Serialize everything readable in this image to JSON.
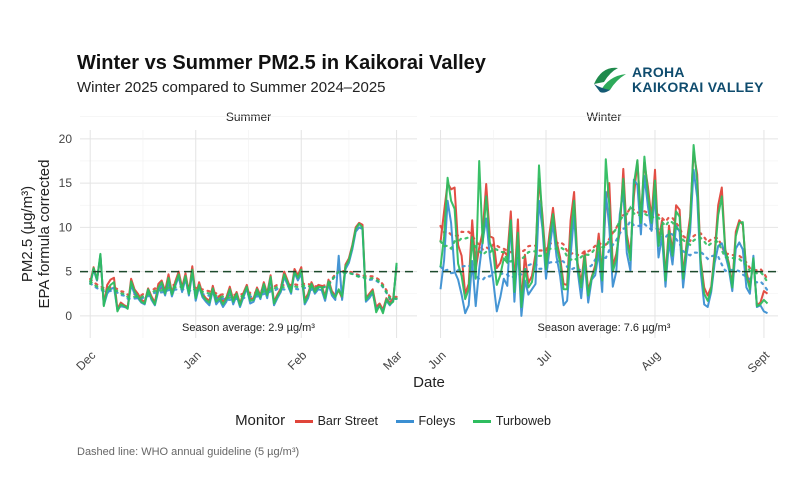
{
  "header": {
    "title": "Winter vs Summer PM2.5 in Kaikorai Valley",
    "subtitle": "Winter 2025 compared to Summer 2024–2025"
  },
  "logo": {
    "line1": "AROHA",
    "line2": "KAIKORAI VALLEY"
  },
  "caption": "Dashed line: WHO annual guideline (5 µg/m³)",
  "legend": {
    "title": "Monitor",
    "items": [
      {
        "label": "Barr Street",
        "color": "#e0453a"
      },
      {
        "label": "Foleys",
        "color": "#3b8fd2"
      },
      {
        "label": "Turboweb",
        "color": "#2ebd5f"
      }
    ]
  },
  "chart_data": {
    "type": "line",
    "title": "Winter vs Summer PM2.5 in Kaikorai Valley",
    "xlabel": "Date",
    "ylabel_line1": "PM2.5 (µg/m³)",
    "ylabel_line2": "EPA formula corrected",
    "ylim": [
      -2.5,
      21
    ],
    "yticks": [
      0,
      5,
      10,
      15,
      20
    ],
    "guideline": {
      "value": 5,
      "label": "WHO annual guideline (5 µg/m³)"
    },
    "panels": [
      {
        "name": "Summer",
        "xlim": [
          -3,
          96
        ],
        "xticks": [
          {
            "label": "Dec",
            "x": 0
          },
          {
            "label": "Jan",
            "x": 31
          },
          {
            "label": "Feb",
            "x": 62
          },
          {
            "label": "Mar",
            "x": 90
          }
        ],
        "season_average_label": "Season average: 2.9 µg/m³",
        "series": [
          {
            "name": "Barr Street",
            "start": 0,
            "values": [
              3.8,
              5.5,
              4.0,
              6.8,
              1.3,
              3.5,
              4.1,
              4.3,
              0.8,
              1.5,
              1.2,
              1.0,
              4.2,
              3.0,
              2.5,
              1.8,
              1.6,
              3.1,
              2.2,
              1.5,
              3.6,
              4.0,
              2.8,
              4.7,
              2.6,
              3.9,
              5.0,
              3.2,
              4.8,
              2.7,
              5.6,
              2.2,
              3.8,
              2.5,
              2.0,
              1.7,
              3.4,
              1.9,
              2.3,
              1.6,
              2.1,
              3.3,
              1.8,
              2.7,
              1.4,
              2.6,
              3.5,
              1.9,
              2.0,
              3.2,
              2.3,
              3.8,
              2.5,
              4.6,
              1.6,
              2.4,
              3.1,
              5.0,
              4.0,
              2.9,
              5.3,
              4.6,
              5.5,
              1.8,
              2.5,
              3.8,
              2.9,
              3.5,
              3.4,
              2.2,
              4.1,
              2.8,
              2.3,
              2.9,
              2.0,
              5.8,
              6.5,
              8.0,
              10.0,
              10.5,
              10.3,
              2.0,
              2.5,
              3.0,
              1.0,
              1.4,
              0.7,
              2.0,
              1.5,
              2.0,
              5.5
            ]
          },
          {
            "name": "Foleys",
            "start": 0,
            "values": [
              3.6,
              5.2,
              4.0,
              6.9,
              1.2,
              2.5,
              3.0,
              3.2,
              0.7,
              1.1,
              1.0,
              0.9,
              3.5,
              2.5,
              2.0,
              1.5,
              1.3,
              2.9,
              1.8,
              1.2,
              2.8,
              3.5,
              2.3,
              3.9,
              2.2,
              3.4,
              4.4,
              2.7,
              4.2,
              2.3,
              4.9,
              1.7,
              3.3,
              2.1,
              1.6,
              1.2,
              2.9,
              1.3,
              1.8,
              1.0,
              1.6,
              2.8,
              1.3,
              2.3,
              1.0,
              2.1,
              3.1,
              1.4,
              1.6,
              2.7,
              1.9,
              3.3,
              2.0,
              4.2,
              1.2,
              2.0,
              2.7,
              4.4,
              3.5,
              2.5,
              4.9,
              4.0,
              4.8,
              1.3,
              2.0,
              3.4,
              2.5,
              3.0,
              2.9,
              1.7,
              3.6,
              2.3,
              1.8,
              6.8,
              1.8,
              5.3,
              6.0,
              7.5,
              9.5,
              10.0,
              9.8,
              1.6,
              2.0,
              2.6,
              0.7,
              1.1,
              0.5,
              1.7,
              1.2,
              1.7,
              5.8
            ]
          },
          {
            "name": "Turboweb",
            "start": 0,
            "values": [
              3.5,
              5.4,
              4.1,
              7.0,
              1.1,
              3.0,
              3.5,
              3.8,
              0.5,
              1.3,
              1.1,
              0.8,
              3.9,
              2.8,
              2.2,
              1.6,
              1.4,
              3.0,
              2.0,
              1.3,
              3.2,
              3.8,
              2.5,
              4.3,
              2.4,
              3.6,
              4.7,
              3.0,
              4.5,
              2.5,
              5.2,
              2.0,
              3.5,
              2.3,
              1.8,
              1.5,
              3.1,
              1.6,
              2.0,
              1.3,
              1.9,
              3.0,
              1.6,
              2.5,
              1.2,
              2.4,
              3.3,
              1.7,
              1.8,
              3.0,
              2.1,
              3.6,
              2.3,
              4.4,
              1.4,
              2.2,
              2.9,
              4.7,
              3.8,
              2.7,
              5.0,
              4.3,
              5.2,
              1.5,
              2.3,
              3.6,
              2.7,
              3.3,
              3.2,
              2.0,
              3.9,
              2.6,
              2.1,
              3.0,
              2.2,
              5.6,
              6.3,
              7.8,
              9.8,
              10.4,
              10.0,
              1.8,
              2.3,
              2.8,
              0.4,
              1.2,
              0.3,
              1.9,
              1.3,
              1.6,
              6.0
            ]
          }
        ]
      },
      {
        "name": "Winter",
        "xlim": [
          -3,
          96
        ],
        "xticks": [
          {
            "label": "Jun",
            "x": 0
          },
          {
            "label": "Jul",
            "x": 30
          },
          {
            "label": "Aug",
            "x": 61
          },
          {
            "label": "Sept",
            "x": 92
          }
        ],
        "season_average_label": "Season average: 7.6 µg/m³",
        "series": [
          {
            "name": "Barr Street",
            "start": 0,
            "values": [
              8.3,
              11.8,
              15.0,
              14.3,
              14.5,
              8.0,
              6.8,
              2.5,
              3.6,
              10.8,
              5.3,
              7.7,
              9.5,
              14.9,
              9.0,
              8.8,
              5.4,
              6.0,
              7.3,
              6.8,
              11.8,
              3.5,
              10.9,
              1.4,
              6.9,
              3.7,
              4.5,
              7.0,
              15.5,
              11.3,
              5.9,
              9.3,
              12.2,
              8.5,
              6.6,
              3.6,
              3.5,
              10.8,
              14.0,
              6.0,
              3.7,
              7.3,
              2.8,
              4.4,
              5.7,
              9.3,
              4.8,
              12.8,
              15.0,
              5.6,
              7.0,
              9.5,
              16.6,
              9.2,
              7.0,
              13.5,
              17.5,
              11.0,
              17.3,
              14.6,
              11.0,
              16.5,
              8.3,
              10.8,
              4.3,
              10.2,
              7.2,
              12.5,
              12.0,
              4.6,
              8.2,
              11.2,
              18.5,
              16.0,
              6.3,
              3.2,
              2.3,
              3.3,
              7.2,
              12.5,
              14.5,
              7.5,
              6.0,
              3.5,
              9.5,
              10.8,
              10.3,
              5.0,
              3.3,
              6.2,
              1.2,
              1.5,
              2.8,
              2.5
            ]
          },
          {
            "name": "Foleys",
            "start": 0,
            "values": [
              3.0,
              6.3,
              13.0,
              10.5,
              5.0,
              4.1,
              2.4,
              0.3,
              1.2,
              6.2,
              1.1,
              5.3,
              8.5,
              11.0,
              6.7,
              3.9,
              0.5,
              2.1,
              4.2,
              3.4,
              10.7,
              1.6,
              7.8,
              0.0,
              4.0,
              2.4,
              3.0,
              3.6,
              13.0,
              9.8,
              4.2,
              7.5,
              10.5,
              6.7,
              4.5,
              1.2,
              1.7,
              6.8,
              11.4,
              5.1,
              2.0,
              6.1,
              1.5,
              4.1,
              4.6,
              7.2,
              2.7,
              14.0,
              10.0,
              3.3,
              5.0,
              11.5,
              14.0,
              7.1,
              5.1,
              15.4,
              14.8,
              9.2,
              15.8,
              12.4,
              9.6,
              13.6,
              6.6,
              9.0,
              3.3,
              8.4,
              5.8,
              10.2,
              9.5,
              3.2,
              6.9,
              9.5,
              16.5,
              13.4,
              5.0,
              1.3,
              1.0,
              2.7,
              6.0,
              7.9,
              8.2,
              6.9,
              5.3,
              2.8,
              7.6,
              8.3,
              7.5,
              3.2,
              2.5,
              6.8,
              1.0,
              1.2,
              0.5,
              0.3
            ]
          },
          {
            "name": "Turboweb",
            "start": 0,
            "values": [
              5.5,
              9.0,
              15.6,
              13.0,
              12.1,
              5.9,
              4.5,
              1.9,
              3.0,
              8.9,
              4.2,
              17.5,
              8.2,
              13.5,
              8.3,
              7.2,
              3.5,
              4.6,
              6.5,
              6.0,
              10.8,
              2.7,
              9.4,
              1.0,
              5.3,
              3.2,
              3.8,
              6.3,
              17.0,
              10.6,
              5.3,
              8.6,
              11.5,
              7.9,
              6.0,
              3.0,
              3.0,
              9.1,
              13.0,
              5.6,
              3.2,
              6.8,
              2.3,
              4.3,
              5.3,
              8.5,
              4.0,
              17.7,
              12.5,
              5.0,
              6.4,
              10.7,
              15.5,
              8.6,
              6.3,
              14.9,
              17.6,
              10.5,
              18.0,
              13.8,
              10.5,
              15.3,
              7.9,
              10.3,
              4.0,
              9.6,
              6.8,
              11.8,
              11.2,
              4.2,
              7.8,
              10.5,
              19.3,
              15.2,
              6.0,
              2.5,
              1.7,
              3.0,
              6.8,
              11.4,
              13.5,
              7.3,
              5.8,
              3.2,
              9.0,
              10.5,
              10.6,
              4.5,
              3.0,
              6.5,
              1.1,
              1.3,
              1.8,
              1.4
            ]
          }
        ]
      }
    ]
  }
}
